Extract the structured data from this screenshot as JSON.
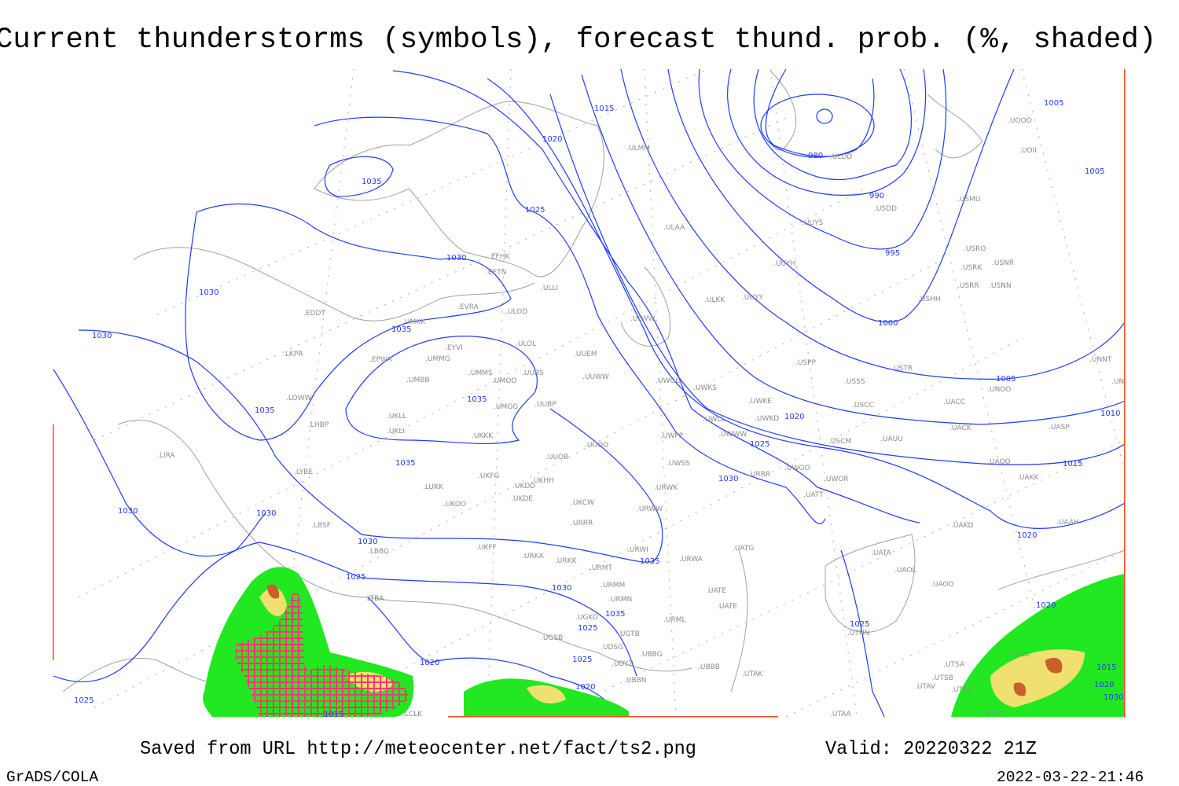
{
  "title": "Current thunderstorms (symbols), forecast thund. prob. (%, shaded)",
  "footer": {
    "saved_from": "Saved from URL http://meteocenter.net/fact/ts2.png",
    "valid": "Valid: 20220322 21Z",
    "software": "GrADS/COLA",
    "timestamp": "2022-03-22-21:46"
  },
  "colors": {
    "isobar": "#1f3bff",
    "coastline": "#a0a0a0",
    "station_label": "#8a8a8a",
    "frame": "#ff4a1a",
    "prob_low": "#22e822",
    "prob_mid": "#f0e070",
    "prob_high": "#c8602a",
    "thunderstorm_symbol": "#ff3a6e"
  },
  "isobar_labels": [
    "1015",
    "1020",
    "1035",
    "1025",
    "1030",
    "1030",
    "1030",
    "1035",
    "980",
    "990",
    "995",
    "1000",
    "1005",
    "1005",
    "1005",
    "1010",
    "1015",
    "1020",
    "1035",
    "1035",
    "1025",
    "1020",
    "1030",
    "1035",
    "1030",
    "1030",
    "1030",
    "1035",
    "1025",
    "1030",
    "1035",
    "1025",
    "1025",
    "1025",
    "1020",
    "1020",
    "1025",
    "1015",
    "1020",
    "1015",
    "1020",
    "1030"
  ],
  "station_labels": [
    "ULMM",
    "ULDD",
    "USDD",
    "USMU",
    "UUYS",
    "ULAA",
    "UUYH",
    "USRO",
    "USRK",
    "USNR",
    "USRR",
    "USNN",
    "USHH",
    "UOOO",
    "UOII",
    "EFHK",
    "EETN",
    "ULLI",
    "UUYY",
    "ULKK",
    "EVRA",
    "ULOD",
    "EDDT",
    "UMKK",
    "ULWW",
    "ULOL",
    "EYVI",
    "UUEM",
    "LKPR",
    "EPWA",
    "UMMG",
    "USPP",
    "USTR",
    "UMMS",
    "UMOO",
    "UUBS",
    "UUWW",
    "UMBB",
    "UWGG",
    "USSS",
    "UWKS",
    "UNOO",
    "UNNT",
    "UNBB",
    "LOWW",
    "UACC",
    "UWKE",
    "USCC",
    "UMGG",
    "UUBP",
    "UWLL",
    "UWKD",
    "UKLL",
    "LHBP",
    "UACK",
    "UASP",
    "UKLI",
    "UKKK",
    "UWPP",
    "UWWW",
    "USCM",
    "UAUU",
    "UUOO",
    "LIRA",
    "UUOB",
    "UWSS",
    "UAOO",
    "UWOO",
    "URRR",
    "UKHH",
    "UKFG",
    "UKDD",
    "UAKK",
    "LYBE",
    "UWOR",
    "LUKK",
    "URWK",
    "UATT",
    "UKDE",
    "UKOO",
    "UKCW",
    "URWW",
    "LBSF",
    "URRR",
    "UAKD",
    "UAAH",
    "UKFF",
    "UATG",
    "URWI",
    "LBBG",
    "URKA",
    "URKK",
    "UATA",
    "URMT",
    "URWA",
    "UAOL",
    "URMM",
    "UAOO",
    "UATE",
    "LTBA",
    "URMN",
    "UATE",
    "URML",
    "UGKO",
    "UGSB",
    "UGTB",
    "UTNN",
    "UDSG",
    "UBBG",
    "UDYZ",
    "UTDL",
    "UBBB",
    "UTAK",
    "UBBN",
    "UTSB",
    "UTSA",
    "UTSK",
    "UTAV",
    "UTST",
    "UTAA",
    "LCLK"
  ]
}
